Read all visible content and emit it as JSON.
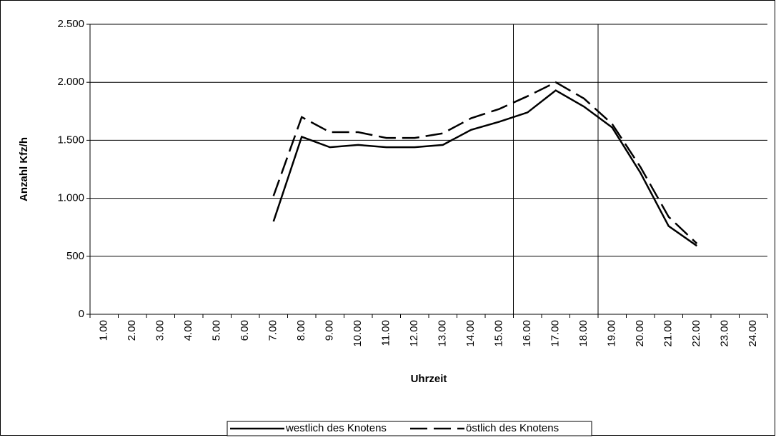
{
  "chart_data": {
    "type": "line",
    "x_label": "Uhrzeit",
    "y_label": "Anzahl Kfz/h",
    "categories": [
      "1.00",
      "2.00",
      "3.00",
      "4.00",
      "5.00",
      "6.00",
      "7.00",
      "8.00",
      "9.00",
      "10.00",
      "11.00",
      "12.00",
      "13.00",
      "14.00",
      "15.00",
      "16.00",
      "17.00",
      "18.00",
      "19.00",
      "20.00",
      "21.00",
      "22.00",
      "23.00",
      "24.00"
    ],
    "series": [
      {
        "name": "westlich des Knotens",
        "color": "#000000",
        "dash": "solid",
        "values": [
          null,
          null,
          null,
          null,
          null,
          null,
          800,
          1530,
          1440,
          1460,
          1440,
          1440,
          1460,
          1590,
          1660,
          1740,
          1930,
          1790,
          1610,
          1220,
          760,
          590,
          null,
          null
        ]
      },
      {
        "name": "östlich des Knotens",
        "color": "#000000",
        "dash": "dashed",
        "values": [
          null,
          null,
          null,
          null,
          null,
          null,
          1020,
          1700,
          1570,
          1570,
          1520,
          1520,
          1560,
          1690,
          1770,
          1880,
          2000,
          1860,
          1640,
          1270,
          840,
          610,
          null,
          null
        ]
      }
    ],
    "ylim": [
      0,
      2500
    ],
    "yticks": [
      0,
      500,
      {
        "value": 1000,
        "label": "1.000"
      },
      {
        "value": 1500,
        "label": "1.500"
      },
      {
        "value": 2000,
        "label": "2.000"
      },
      {
        "value": 2500,
        "label": "2.500"
      }
    ],
    "grid": true,
    "legend": "bottom"
  }
}
